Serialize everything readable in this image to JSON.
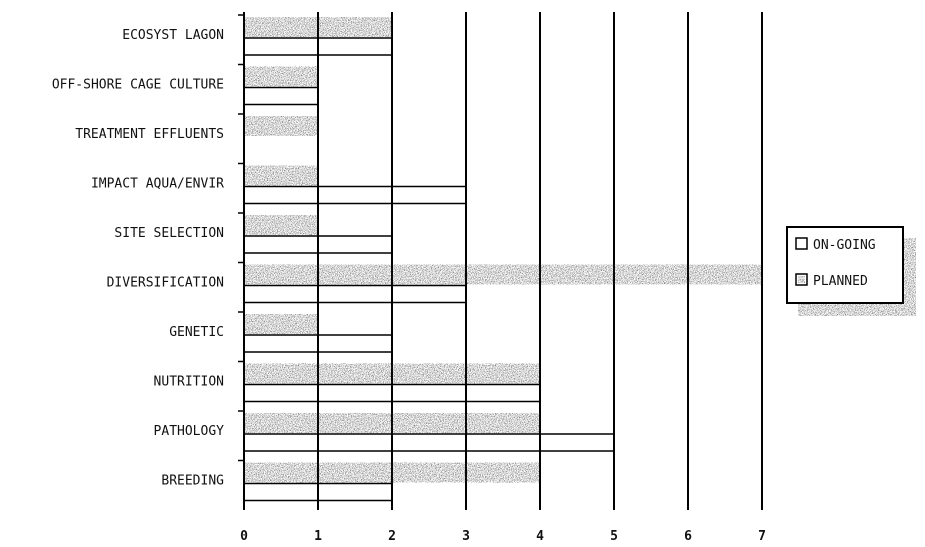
{
  "chart_data": {
    "type": "bar",
    "orientation": "horizontal",
    "title": "",
    "xlabel": "",
    "ylabel": "",
    "categories": [
      "ECOSYST LAGON",
      "OFF-SHORE CAGE CULTURE",
      "TREATMENT EFFLUENTS",
      "IMPACT AQUA/ENVIR",
      "SITE SELECTION",
      "DIVERSIFICATION",
      "GENETIC",
      "NUTRITION",
      "PATHOLOGY",
      "BREEDING"
    ],
    "series": [
      {
        "name": "PLANNED",
        "values": [
          2,
          1,
          1,
          1,
          1,
          7,
          1,
          4,
          4,
          4
        ],
        "color": "#2b2b2b",
        "pattern": "dense-stipple"
      },
      {
        "name": "ON-GOING",
        "values": [
          2,
          1,
          0,
          3,
          2,
          3,
          2,
          4,
          5,
          2
        ],
        "color": "#ffffff",
        "pattern": "hollow"
      }
    ],
    "xlim": [
      0,
      7
    ],
    "xticks": [
      "0",
      "1",
      "2",
      "3",
      "4",
      "5",
      "6",
      "7"
    ],
    "grid": "vertical",
    "legend_position": "right",
    "legend": {
      "ongoing_label": "ON-GOING",
      "planned_label": "PLANNED"
    }
  }
}
